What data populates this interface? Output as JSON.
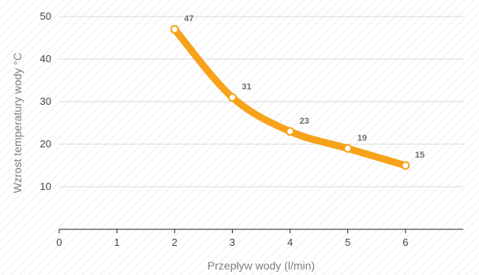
{
  "chart_data": {
    "type": "line",
    "x": [
      2,
      3,
      4,
      5,
      6
    ],
    "series": [
      {
        "values": [
          47,
          31,
          23,
          19,
          15
        ],
        "data_labels": [
          "47",
          "31",
          "23",
          "19",
          "15"
        ]
      }
    ],
    "xlabel": "Przepływ wody (l/min)",
    "ylabel": "Wzrost temperatury wody °C",
    "x_ticks": [
      "0",
      "1",
      "2",
      "3",
      "4",
      "5",
      "6"
    ],
    "y_ticks": [
      "10",
      "20",
      "30",
      "40",
      "50"
    ],
    "xlim": [
      0,
      7
    ],
    "ylim": [
      0,
      50
    ],
    "grid": "horizontal",
    "line_style": "smooth",
    "colors": {
      "line": "#f7a21b",
      "marker_fill": "#ffffff",
      "grid": "#d9d9d9",
      "axis": "#222222",
      "hatch": "#eeeeee"
    }
  }
}
